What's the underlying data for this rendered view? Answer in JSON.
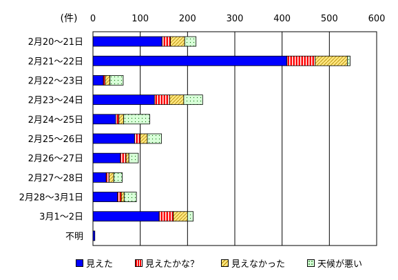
{
  "chart_data": {
    "type": "bar",
    "orientation": "horizontal",
    "stacked": true,
    "unit_label": "(件)",
    "xlim": [
      0,
      600
    ],
    "xticks": [
      "0",
      "100",
      "200",
      "300",
      "400",
      "500",
      "600"
    ],
    "grid": true,
    "legend_position": "bottom",
    "categories": [
      "2月20～21日",
      "2月21～22日",
      "2月22～23日",
      "2月23～24日",
      "2月24～25日",
      "2月25～26日",
      "2月26～27日",
      "2月27～28日",
      "2月28～3月1日",
      "3月1～2日",
      "不明"
    ],
    "series": [
      {
        "name": "見えた",
        "color": "#0000ff",
        "pattern": "solid",
        "values": [
          146,
          410,
          22,
          130,
          48,
          88,
          58,
          28,
          52,
          140,
          4
        ]
      },
      {
        "name": "見えたかな？",
        "color": "#ff0000",
        "pattern": "stripes-red",
        "values": [
          18,
          60,
          4,
          32,
          7,
          12,
          12,
          6,
          8,
          30,
          0
        ]
      },
      {
        "name": "見えなかった",
        "color": "#ffcc66",
        "pattern": "diag-yellow",
        "values": [
          30,
          68,
          10,
          30,
          10,
          15,
          6,
          10,
          6,
          30,
          0
        ]
      },
      {
        "name": "天候が悪い",
        "color": "#ccffcc",
        "pattern": "dots-green",
        "values": [
          24,
          6,
          28,
          40,
          55,
          30,
          20,
          18,
          26,
          12,
          0
        ]
      }
    ]
  }
}
